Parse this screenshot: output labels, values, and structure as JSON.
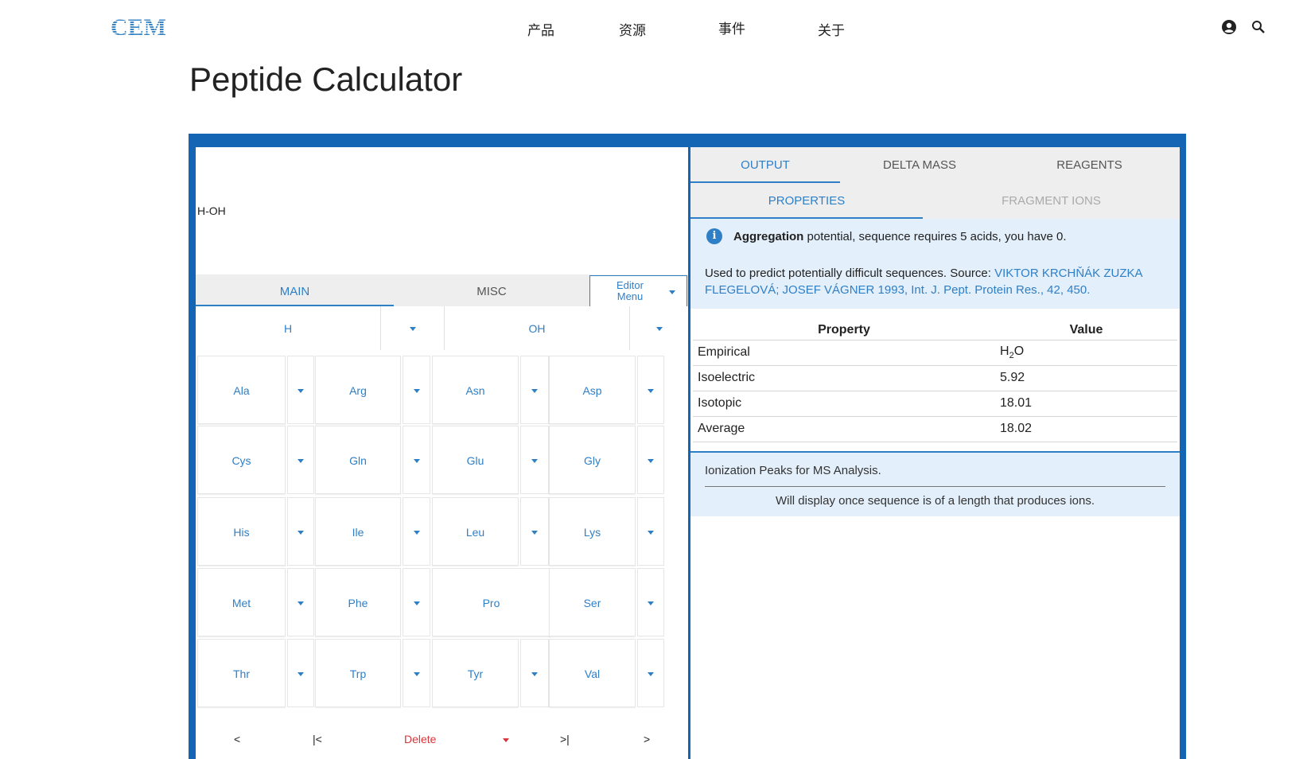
{
  "header": {
    "logo": "CEM",
    "nav": [
      "产品",
      "资源",
      "事件",
      "关于"
    ],
    "icons": [
      "account-icon",
      "search-icon"
    ]
  },
  "page_title": "Peptide Calculator",
  "editor": {
    "sequence": "H-OH",
    "tabs": [
      "MAIN",
      "MISC"
    ],
    "editor_menu": "Editor Menu",
    "n_terminus": "H",
    "c_terminus": "OH",
    "amino_acids": [
      [
        "Ala",
        "Arg",
        "Asn",
        "Asp"
      ],
      [
        "Cys",
        "Gln",
        "Glu",
        "Gly"
      ],
      [
        "His",
        "Ile",
        "Leu",
        "Lys"
      ],
      [
        "Met",
        "Phe",
        "Pro",
        "Ser"
      ],
      [
        "Thr",
        "Trp",
        "Tyr",
        "Val"
      ]
    ],
    "bottom": {
      "prev": "<",
      "first": "|<",
      "delete": "Delete",
      "last": ">|",
      "next": ">"
    }
  },
  "output": {
    "tabs": [
      "OUTPUT",
      "DELTA MASS",
      "REAGENTS"
    ],
    "subtabs": [
      "PROPERTIES",
      "FRAGMENT IONS"
    ],
    "aggregation_bold": "Aggregation",
    "aggregation_rest": " potential, sequence requires 5 acids, you have 0.",
    "source_text": "Used to predict potentially difficult sequences. Source: ",
    "source_link": "VIKTOR KRCHŇÁK ZUZKA FLEGELOVÁ; JOSEF VÁGNER 1993, Int. J. Pept. Protein Res., 42, 450.",
    "table_headers": [
      "Property",
      "Value"
    ],
    "properties": [
      {
        "name": "Empirical",
        "value": "H",
        "sub": "2",
        "tail": "O"
      },
      {
        "name": "Isoelectric",
        "value": "5.92"
      },
      {
        "name": "Isotopic",
        "value": "18.01"
      },
      {
        "name": "Average",
        "value": "18.02"
      }
    ],
    "ion_title": "Ionization Peaks for MS Analysis.",
    "ion_message": "Will display once sequence is of a length that produces ions."
  },
  "colors": {
    "accent": "#2f7fc6",
    "frame": "#1565b5",
    "delete": "#d9343a",
    "info_bg": "#e3effb"
  }
}
